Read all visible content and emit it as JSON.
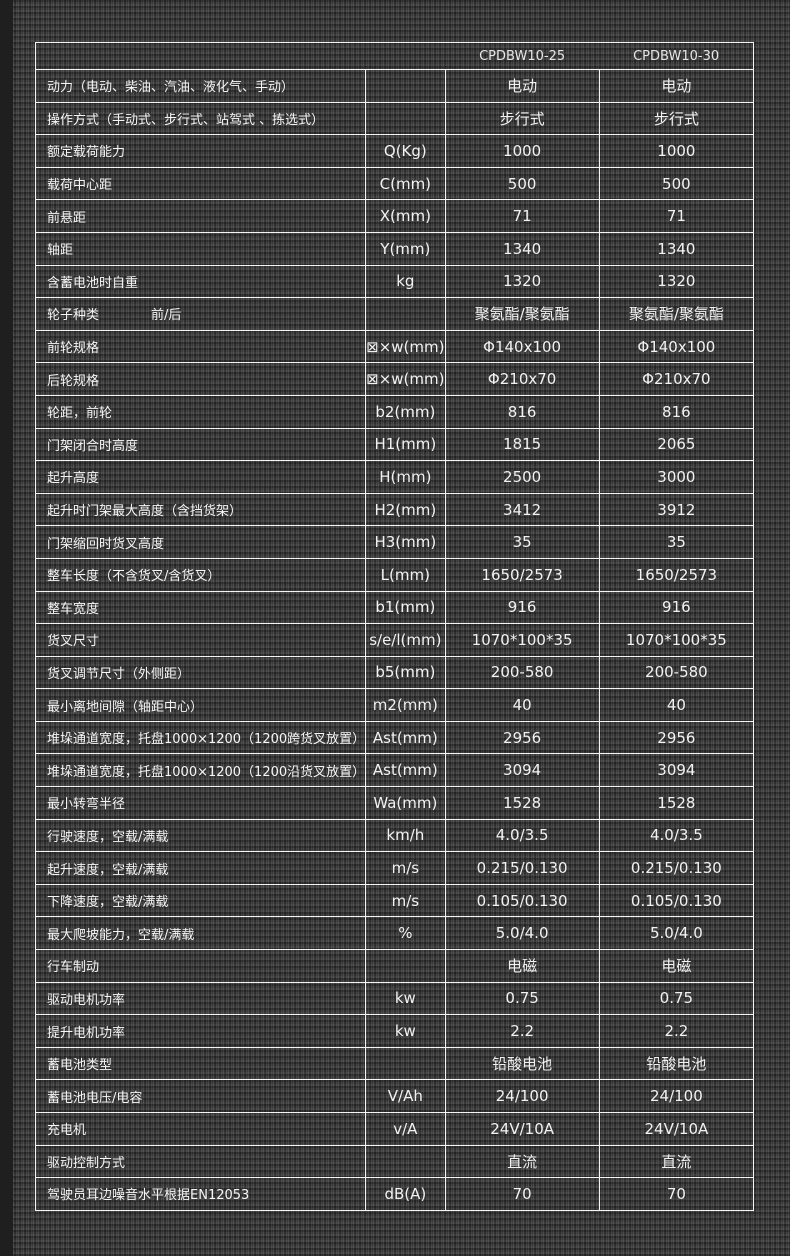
{
  "header": {
    "models": [
      "CPDBW10-25",
      "CPDBW10-30"
    ]
  },
  "rows": [
    {
      "label": "动力（电动、柴油、汽油、液化气、手动）",
      "unit": "",
      "v1": "电动",
      "v2": "电动"
    },
    {
      "label": "操作方式（手动式、步行式、站驾式 、拣选式）",
      "unit": "",
      "v1": "步行式",
      "v2": "步行式"
    },
    {
      "label": "额定载荷能力",
      "unit": "Q(Kg)",
      "v1": "1000",
      "v2": "1000"
    },
    {
      "label": "载荷中心距",
      "unit": "C(mm)",
      "v1": "500",
      "v2": "500"
    },
    {
      "label": "前悬距",
      "unit": "X(mm)",
      "v1": "71",
      "v2": "71"
    },
    {
      "label": "轴距",
      "unit": "Y(mm)",
      "v1": "1340",
      "v2": "1340"
    },
    {
      "label": "含蓄电池时自重",
      "unit": "kg",
      "v1": "1320",
      "v2": "1320"
    },
    {
      "label": "轮子种类",
      "sublabel": "前/后",
      "unit": "",
      "v1": "聚氨酯/聚氨酯",
      "v2": "聚氨酯/聚氨酯"
    },
    {
      "label": "前轮规格",
      "unit": "⊠×w(mm)",
      "v1": "Φ140x100",
      "v2": "Φ140x100"
    },
    {
      "label": "后轮规格",
      "unit": "⊠×w(mm)",
      "v1": "Φ210x70",
      "v2": "Φ210x70"
    },
    {
      "label": "轮距，前轮",
      "unit": "b2(mm)",
      "v1": "816",
      "v2": "816"
    },
    {
      "label": "门架闭合时高度",
      "unit": "H1(mm)",
      "v1": "1815",
      "v2": "2065"
    },
    {
      "label": "起升高度",
      "unit": "H(mm)",
      "v1": "2500",
      "v2": "3000"
    },
    {
      "label": "起升时门架最大高度（含挡货架）",
      "unit": "H2(mm)",
      "v1": "3412",
      "v2": "3912"
    },
    {
      "label": "门架缩回时货叉高度",
      "unit": "H3(mm)",
      "v1": "35",
      "v2": "35"
    },
    {
      "label": "整车长度（不含货叉/含货叉）",
      "unit": "L(mm)",
      "v1": "1650/2573",
      "v2": "1650/2573"
    },
    {
      "label": "整车宽度",
      "unit": "b1(mm)",
      "v1": "916",
      "v2": "916"
    },
    {
      "label": "货叉尺寸",
      "unit": "s/e/l(mm)",
      "v1": "1070*100*35",
      "v2": "1070*100*35"
    },
    {
      "label": "货叉调节尺寸（外侧距）",
      "unit": "b5(mm)",
      "v1": "200-580",
      "v2": "200-580"
    },
    {
      "label": "最小离地间隙（轴距中心）",
      "unit": "m2(mm)",
      "v1": "40",
      "v2": "40"
    },
    {
      "label": "堆垛通道宽度，托盘1000×1200（1200跨货叉放置）",
      "unit": "Ast(mm)",
      "v1": "2956",
      "v2": "2956"
    },
    {
      "label": "堆垛通道宽度，托盘1000×1200（1200沿货叉放置）",
      "unit": "Ast(mm)",
      "v1": "3094",
      "v2": "3094"
    },
    {
      "label": "最小转弯半径",
      "unit": "Wa(mm)",
      "v1": "1528",
      "v2": "1528"
    },
    {
      "label": "行驶速度，空载/满载",
      "unit": "km/h",
      "v1": "4.0/3.5",
      "v2": "4.0/3.5"
    },
    {
      "label": "起升速度，空载/满载",
      "unit": "m/s",
      "v1": "0.215/0.130",
      "v2": "0.215/0.130"
    },
    {
      "label": "下降速度，空载/满载",
      "unit": "m/s",
      "v1": "0.105/0.130",
      "v2": "0.105/0.130"
    },
    {
      "label": "最大爬坡能力，空载/满载",
      "unit": "%",
      "v1": "5.0/4.0",
      "v2": "5.0/4.0"
    },
    {
      "label": "行车制动",
      "unit": "",
      "v1": "电磁",
      "v2": "电磁"
    },
    {
      "label": "驱动电机功率",
      "unit": "kw",
      "v1": "0.75",
      "v2": "0.75"
    },
    {
      "label": "提升电机功率",
      "unit": "kw",
      "v1": "2.2",
      "v2": "2.2"
    },
    {
      "label": "蓄电池类型",
      "unit": "",
      "v1": "铅酸电池",
      "v2": "铅酸电池"
    },
    {
      "label": "蓄电池电压/电容",
      "unit": "V/Ah",
      "v1": "24/100",
      "v2": "24/100"
    },
    {
      "label": "充电机",
      "unit": "v/A",
      "v1": "24V/10A",
      "v2": "24V/10A"
    },
    {
      "label": "驱动控制方式",
      "unit": "",
      "v1": "直流",
      "v2": "直流"
    },
    {
      "label": "驾驶员耳边噪音水平根据EN12053",
      "unit": "dB(A)",
      "v1": "70",
      "v2": "70"
    }
  ]
}
